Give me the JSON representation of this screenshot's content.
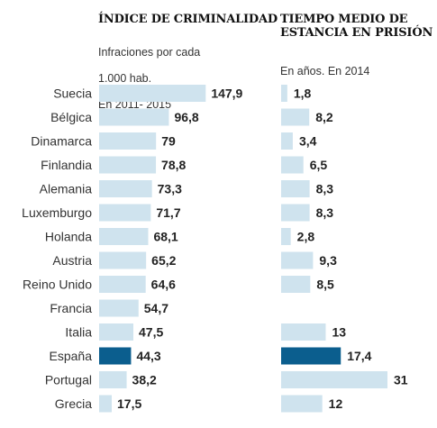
{
  "chart_data": [
    {
      "type": "bar",
      "orientation": "horizontal",
      "title": "ÍNDICE DE CRIMINALIDAD",
      "subtitle_lines": [
        "Infraciones por cada",
        "1.000 hab.",
        "En 2011- 2015"
      ],
      "categories": [
        "Suecia",
        "Bélgica",
        "Dinamarca",
        "Finlandia",
        "Alemania",
        "Luxemburgo",
        "Holanda",
        "Austria",
        "Reino Unido",
        "Francia",
        "Italia",
        "España",
        "Portugal",
        "Grecia"
      ],
      "value_labels": [
        "147,9",
        "96,8",
        "79",
        "78,8",
        "73,3",
        "71,7",
        "68,1",
        "65,2",
        "64,6",
        "54,7",
        "47,5",
        "44,3",
        "38,2",
        "17,5"
      ],
      "values": [
        147.9,
        96.8,
        79,
        78.8,
        73.3,
        71.7,
        68.1,
        65.2,
        64.6,
        54.7,
        47.5,
        44.3,
        38.2,
        17.5
      ],
      "xlim": [
        0,
        150
      ],
      "highlight": "España",
      "bar_color": "#cfe3ee",
      "highlight_color": "#0b5e8e"
    },
    {
      "type": "bar",
      "orientation": "horizontal",
      "title": "TIEMPO MEDIO DE ESTANCIA EN PRISIÓN",
      "subtitle": "En años. En 2014",
      "categories": [
        "Suecia",
        "Bélgica",
        "Dinamarca",
        "Finlandia",
        "Alemania",
        "Luxemburgo",
        "Holanda",
        "Austria",
        "Reino Unido",
        "Francia",
        "Italia",
        "España",
        "Portugal",
        "Grecia"
      ],
      "value_labels": [
        "1,8",
        "8,2",
        "3,4",
        "6,5",
        "8,3",
        "8,3",
        "2,8",
        "9,3",
        "8,5",
        "",
        "13",
        "17,4",
        "31",
        "12"
      ],
      "values": [
        1.8,
        8.2,
        3.4,
        6.5,
        8.3,
        8.3,
        2.8,
        9.3,
        8.5,
        null,
        13,
        17.4,
        31,
        12
      ],
      "xlim": [
        0,
        31
      ],
      "highlight": "España",
      "bar_color": "#cfe3ee",
      "highlight_color": "#0b5e8e"
    }
  ]
}
